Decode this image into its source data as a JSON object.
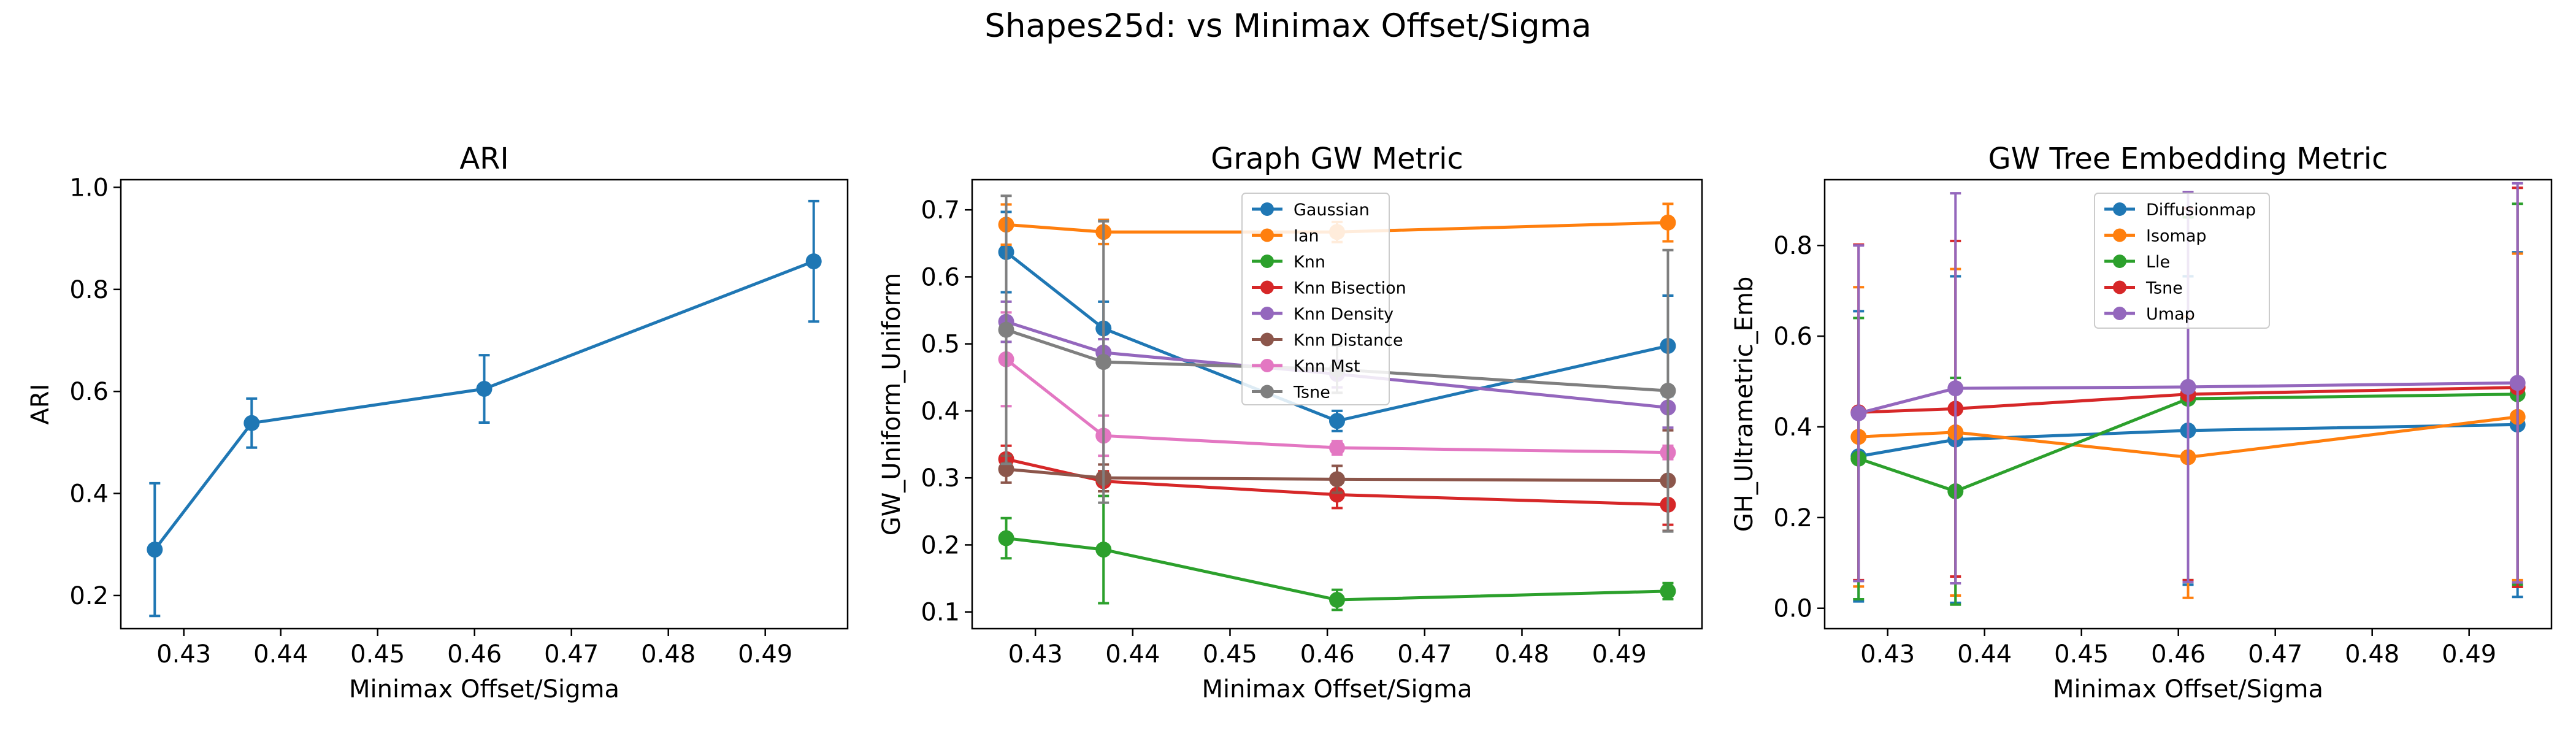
{
  "figure": {
    "suptitle": "Shapes25d: vs Minimax Offset/Sigma"
  },
  "chart_data": [
    {
      "type": "line",
      "title": "ARI",
      "xlabel": "Minimax Offset/Sigma",
      "ylabel": "ARI",
      "xlim": [
        0.4235,
        0.4985
      ],
      "ylim": [
        0.135,
        1.015
      ],
      "xticks": [
        0.43,
        0.44,
        0.45,
        0.46,
        0.47,
        0.48,
        0.49
      ],
      "yticks": [
        0.2,
        0.4,
        0.6,
        0.8,
        1.0
      ],
      "x": [
        0.427,
        0.437,
        0.461,
        0.495
      ],
      "legend": "none",
      "series": [
        {
          "name": "",
          "color": "#1f77b4",
          "values": [
            0.29,
            0.538,
            0.605,
            0.855
          ],
          "err": [
            0.13,
            0.048,
            0.066,
            0.118
          ]
        }
      ]
    },
    {
      "type": "line",
      "title": "Graph GW Metric",
      "xlabel": "Minimax Offset/Sigma",
      "ylabel": "GW_Uniform_Uniform",
      "xlim": [
        0.4235,
        0.4985
      ],
      "ylim": [
        0.075,
        0.745
      ],
      "xticks": [
        0.43,
        0.44,
        0.45,
        0.46,
        0.47,
        0.48,
        0.49
      ],
      "yticks": [
        0.1,
        0.2,
        0.3,
        0.4,
        0.5,
        0.6,
        0.7
      ],
      "x": [
        0.427,
        0.437,
        0.461,
        0.495
      ],
      "legend": "upper center",
      "series": [
        {
          "name": "Gaussian",
          "color": "#1f77b4",
          "values": [
            0.637,
            0.523,
            0.385,
            0.497
          ],
          "err": [
            0.06,
            0.04,
            0.015,
            0.075
          ]
        },
        {
          "name": "Ian",
          "color": "#ff7f0e",
          "values": [
            0.678,
            0.667,
            0.667,
            0.681
          ],
          "err": [
            0.03,
            0.018,
            0.015,
            0.028
          ]
        },
        {
          "name": "Knn",
          "color": "#2ca02c",
          "values": [
            0.21,
            0.193,
            0.118,
            0.131
          ],
          "err": [
            0.03,
            0.08,
            0.015,
            0.012
          ]
        },
        {
          "name": "Knn Bisection",
          "color": "#d62728",
          "values": [
            0.328,
            0.295,
            0.275,
            0.26
          ],
          "err": [
            0.02,
            0.015,
            0.02,
            0.03
          ]
        },
        {
          "name": "Knn Density",
          "color": "#9467bd",
          "values": [
            0.533,
            0.487,
            0.455,
            0.405
          ],
          "err": [
            0.03,
            0.02,
            0.02,
            0.03
          ]
        },
        {
          "name": "Knn Distance",
          "color": "#8c564b",
          "values": [
            0.313,
            0.3,
            0.298,
            0.296
          ],
          "err": [
            0.02,
            0.02,
            0.02,
            0.075
          ]
        },
        {
          "name": "Knn Mst",
          "color": "#e377c2",
          "values": [
            0.477,
            0.363,
            0.345,
            0.338
          ],
          "err": [
            0.07,
            0.03,
            0.01,
            0.01
          ]
        },
        {
          "name": "Tsne",
          "color": "#7f7f7f",
          "values": [
            0.521,
            0.473,
            0.462,
            0.43
          ],
          "err": [
            0.2,
            0.21,
            0.035,
            0.21
          ]
        }
      ]
    },
    {
      "type": "line",
      "title": "GW Tree Embedding Metric",
      "xlabel": "Minimax Offset/Sigma",
      "ylabel": "GH_Ultrametric_Emb",
      "xlim": [
        0.4235,
        0.4985
      ],
      "ylim": [
        -0.045,
        0.945
      ],
      "xticks": [
        0.43,
        0.44,
        0.45,
        0.46,
        0.47,
        0.48,
        0.49
      ],
      "yticks": [
        0.0,
        0.2,
        0.4,
        0.6,
        0.8
      ],
      "x": [
        0.427,
        0.437,
        0.461,
        0.495
      ],
      "legend": "upper center",
      "series": [
        {
          "name": "Diffusionmap",
          "color": "#1f77b4",
          "values": [
            0.335,
            0.372,
            0.392,
            0.405
          ],
          "err": [
            0.32,
            0.36,
            0.34,
            0.38
          ]
        },
        {
          "name": "Isomap",
          "color": "#ff7f0e",
          "values": [
            0.378,
            0.388,
            0.333,
            0.422
          ],
          "err": [
            0.33,
            0.36,
            0.31,
            0.36
          ]
        },
        {
          "name": "Lle",
          "color": "#2ca02c",
          "values": [
            0.33,
            0.258,
            0.462,
            0.472
          ],
          "err": [
            0.31,
            0.25,
            0.4,
            0.42
          ]
        },
        {
          "name": "Tsne",
          "color": "#d62728",
          "values": [
            0.432,
            0.44,
            0.472,
            0.487
          ],
          "err": [
            0.37,
            0.37,
            0.41,
            0.44
          ]
        },
        {
          "name": "Umap",
          "color": "#9467bd",
          "values": [
            0.43,
            0.485,
            0.488,
            0.497
          ],
          "err": [
            0.37,
            0.43,
            0.43,
            0.44
          ]
        }
      ]
    }
  ]
}
